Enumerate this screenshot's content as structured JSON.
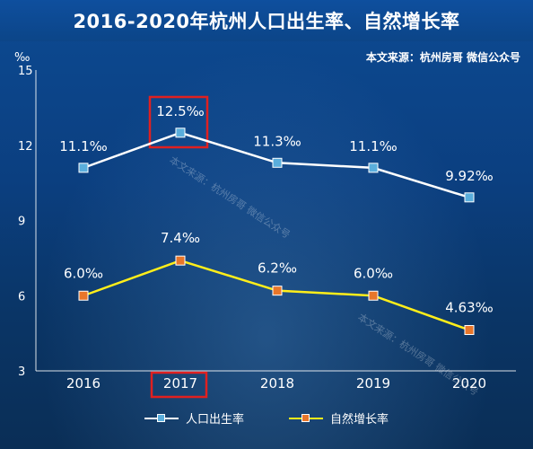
{
  "title": "2016-2020年杭州人口出生率、自然增长率",
  "source": "本文来源：杭州房哥 微信公众号",
  "watermark": "本文来源：杭州房哥 微信公众号",
  "colors": {
    "birth_line": "#ffffff",
    "birth_marker": "#5aaedc",
    "growth_line": "#ffee1a",
    "growth_marker": "#e8762a",
    "highlight_box": "#e02020"
  },
  "chart_data": {
    "type": "line",
    "unit": "‰",
    "categories": [
      "2016",
      "2017",
      "2018",
      "2019",
      "2020"
    ],
    "ylim": [
      3,
      15
    ],
    "yticks": [
      "3",
      "6",
      "9",
      "12",
      "15"
    ],
    "grid": false,
    "legend_position": "bottom",
    "series": [
      {
        "name": "人口出生率",
        "values": [
          11.1,
          12.5,
          11.3,
          11.1,
          9.92
        ],
        "labels": [
          "11.1‰",
          "12.5‰",
          "11.3‰",
          "11.1‰",
          "9.92‰"
        ]
      },
      {
        "name": "自然增长率",
        "values": [
          6.0,
          7.4,
          6.2,
          6.0,
          4.63
        ],
        "labels": [
          "6.0‰",
          "7.4‰",
          "6.2‰",
          "6.0‰",
          "4.63‰"
        ]
      }
    ],
    "highlight": "2017"
  }
}
